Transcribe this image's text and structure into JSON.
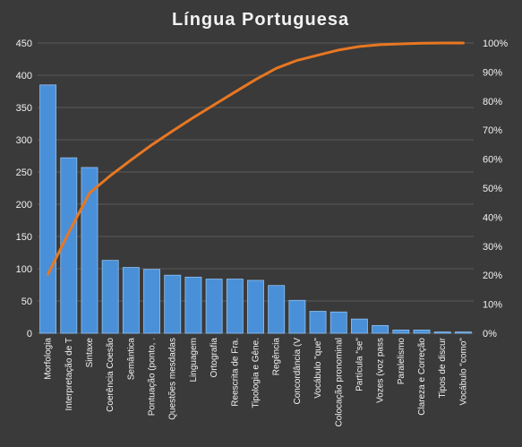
{
  "chart_data": {
    "type": "bar",
    "title": "Língua  Portuguesa",
    "categories": [
      "Morfologia",
      "Interpretação de T",
      "Sintaxe",
      "Coerência Coesão",
      "Semântica",
      "Pontuação (ponto, .",
      "Questões mesdadas",
      "Linguagem",
      "Ortografia",
      "Reescrita de Fra.",
      "Tipologia e Gêne.",
      "Regência",
      "Concordância (V",
      "Vocábulo \"que\"",
      "Colocação pronominal",
      "Partícula \"se\"",
      "Vozes (voz pass",
      "Paralelismo",
      "Clareza e Correção",
      "Tipos de discur",
      "Vocábulo \"como\""
    ],
    "series": [
      {
        "type": "bar",
        "axis": "left",
        "values": [
          385,
          272,
          257,
          113,
          102,
          99,
          90,
          87,
          84,
          84,
          82,
          74,
          51,
          34,
          33,
          22,
          12,
          5,
          5,
          2,
          2
        ]
      },
      {
        "type": "line",
        "axis": "right",
        "values": [
          0.203,
          0.347,
          0.483,
          0.543,
          0.597,
          0.649,
          0.697,
          0.743,
          0.787,
          0.831,
          0.874,
          0.913,
          0.94,
          0.958,
          0.976,
          0.988,
          0.994,
          0.997,
          0.999,
          1.0,
          1.0
        ]
      }
    ],
    "y_left": {
      "min": 0,
      "max": 450,
      "step": 50,
      "ticks": [
        "0",
        "50",
        "100",
        "150",
        "200",
        "250",
        "300",
        "350",
        "400",
        "450"
      ]
    },
    "y_right": {
      "min": 0,
      "max": 1,
      "step": 0.1,
      "ticks": [
        "0%",
        "10%",
        "20%",
        "30%",
        "40%",
        "50%",
        "60%",
        "70%",
        "80%",
        "90%",
        "100%"
      ]
    },
    "grid": true,
    "legend": "none",
    "colors": {
      "background": "#3a3a3a",
      "bar_fill": "#4a90d9",
      "bar_stroke": "#8fc1f0",
      "line": "#e87722",
      "grid": "#5a5a5a",
      "text": "#f2f2f2"
    }
  }
}
